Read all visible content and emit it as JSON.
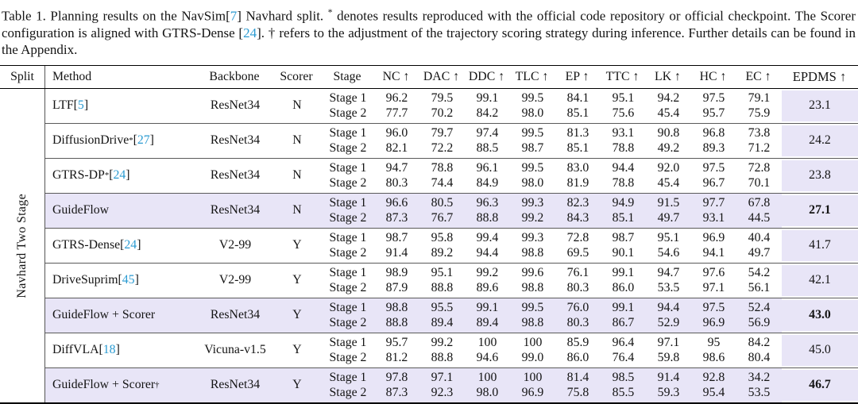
{
  "caption": {
    "segments": [
      {
        "text": "Table 1.  Planning results on the NavSim[",
        "cite": false,
        "sup": false
      },
      {
        "text": "7",
        "cite": true,
        "sup": false
      },
      {
        "text": "] Navhard split.  ",
        "cite": false,
        "sup": false
      },
      {
        "text": "*",
        "cite": false,
        "sup": true
      },
      {
        "text": " denotes results reproduced with the official code repository or official checkpoint. The Scorer configuration is aligned with GTRS-Dense [",
        "cite": false,
        "sup": false
      },
      {
        "text": "24",
        "cite": true,
        "sup": false
      },
      {
        "text": "]. † refers to the adjustment of the trajectory scoring strategy during inference. Further details can be found in the Appendix.",
        "cite": false,
        "sup": false
      }
    ]
  },
  "table": {
    "header": {
      "split": "Split",
      "method": "Method",
      "backbone": "Backbone",
      "scorer": "Scorer",
      "stage": "Stage",
      "metrics": [
        "NC ↑",
        "DAC ↑",
        "DDC ↑",
        "TLC ↑",
        "EP ↑",
        "TTC ↑",
        "LK ↑",
        "HC ↑",
        "EC ↑"
      ],
      "epdms": "EPDMS ↑"
    },
    "split_label": "Navhard Two Stage",
    "stage_labels": [
      "Stage 1",
      "Stage 2"
    ],
    "rows": [
      {
        "method": {
          "label": "LTF",
          "sup": "",
          "cite": "5"
        },
        "backbone": "ResNet34",
        "scorer": "N",
        "stage1": [
          "96.2",
          "79.5",
          "99.1",
          "99.5",
          "84.1",
          "95.1",
          "94.2",
          "97.5",
          "79.1"
        ],
        "stage2": [
          "77.7",
          "70.2",
          "84.2",
          "98.0",
          "85.1",
          "75.6",
          "45.4",
          "95.7",
          "75.9"
        ],
        "epdms": "23.1",
        "highlight": false,
        "epdms_bold": false
      },
      {
        "method": {
          "label": "DiffusionDrive",
          "sup": "*",
          "cite": "27"
        },
        "backbone": "ResNet34",
        "scorer": "N",
        "stage1": [
          "96.0",
          "79.7",
          "97.4",
          "99.5",
          "81.3",
          "93.1",
          "90.8",
          "96.8",
          "73.8"
        ],
        "stage2": [
          "82.1",
          "72.2",
          "88.5",
          "98.7",
          "85.1",
          "78.8",
          "49.2",
          "89.3",
          "71.2"
        ],
        "epdms": "24.2",
        "highlight": false,
        "epdms_bold": false
      },
      {
        "method": {
          "label": "GTRS-DP",
          "sup": "*",
          "cite": "24"
        },
        "backbone": "ResNet34",
        "scorer": "N",
        "stage1": [
          "94.7",
          "78.8",
          "96.1",
          "99.5",
          "83.0",
          "94.4",
          "92.0",
          "97.5",
          "72.8"
        ],
        "stage2": [
          "80.3",
          "74.4",
          "84.9",
          "98.0",
          "81.9",
          "78.8",
          "45.4",
          "96.7",
          "70.1"
        ],
        "epdms": "23.8",
        "highlight": false,
        "epdms_bold": false
      },
      {
        "method": {
          "label": "GuideFlow",
          "sup": "",
          "cite": ""
        },
        "backbone": "ResNet34",
        "scorer": "N",
        "stage1": [
          "96.6",
          "80.5",
          "96.3",
          "99.3",
          "82.3",
          "94.9",
          "91.5",
          "97.7",
          "67.8"
        ],
        "stage2": [
          "87.3",
          "76.7",
          "88.8",
          "99.2",
          "84.3",
          "85.1",
          "49.7",
          "93.1",
          "44.5"
        ],
        "epdms": "27.1",
        "highlight": true,
        "epdms_bold": true
      },
      {
        "method": {
          "label": "GTRS-Dense",
          "sup": "",
          "cite": "24"
        },
        "backbone": "V2-99",
        "scorer": "Y",
        "stage1": [
          "98.7",
          "95.8",
          "99.4",
          "99.3",
          "72.8",
          "98.7",
          "95.1",
          "96.9",
          "40.4"
        ],
        "stage2": [
          "91.4",
          "89.2",
          "94.4",
          "98.8",
          "69.5",
          "90.1",
          "54.6",
          "94.1",
          "49.7"
        ],
        "epdms": "41.7",
        "highlight": false,
        "epdms_bold": false
      },
      {
        "method": {
          "label": "DriveSuprim",
          "sup": "",
          "cite": "45"
        },
        "backbone": "V2-99",
        "scorer": "Y",
        "stage1": [
          "98.9",
          "95.1",
          "99.2",
          "99.6",
          "76.1",
          "99.1",
          "94.7",
          "97.6",
          "54.2"
        ],
        "stage2": [
          "87.9",
          "88.8",
          "89.6",
          "98.8",
          "80.3",
          "86.0",
          "53.5",
          "97.1",
          "56.1"
        ],
        "epdms": "42.1",
        "highlight": false,
        "epdms_bold": false
      },
      {
        "method": {
          "label": "GuideFlow + Scorer",
          "sup": "",
          "cite": ""
        },
        "backbone": "ResNet34",
        "scorer": "Y",
        "stage1": [
          "98.8",
          "95.5",
          "99.1",
          "99.5",
          "76.0",
          "99.1",
          "94.4",
          "97.5",
          "52.4"
        ],
        "stage2": [
          "88.8",
          "89.4",
          "89.4",
          "98.8",
          "80.3",
          "86.7",
          "52.9",
          "96.9",
          "56.9"
        ],
        "epdms": "43.0",
        "highlight": true,
        "epdms_bold": true
      },
      {
        "method": {
          "label": "DiffVLA",
          "sup": "",
          "cite": "18"
        },
        "backbone": "Vicuna-v1.5",
        "scorer": "Y",
        "stage1": [
          "95.7",
          "99.2",
          "100",
          "100",
          "85.9",
          "96.4",
          "97.1",
          "95",
          "84.2"
        ],
        "stage2": [
          "81.2",
          "88.8",
          "94.6",
          "99.0",
          "86.0",
          "76.4",
          "59.8",
          "98.6",
          "80.4"
        ],
        "epdms": "45.0",
        "highlight": false,
        "epdms_bold": false
      },
      {
        "method": {
          "label": "GuideFlow + Scorer",
          "sup": "†",
          "cite": ""
        },
        "backbone": "ResNet34",
        "scorer": "Y",
        "stage1": [
          "97.8",
          "97.1",
          "100",
          "100",
          "81.4",
          "98.5",
          "91.4",
          "92.8",
          "34.2"
        ],
        "stage2": [
          "87.3",
          "92.3",
          "98.0",
          "96.9",
          "75.8",
          "85.5",
          "59.3",
          "95.4",
          "53.5"
        ],
        "epdms": "46.7",
        "highlight": true,
        "epdms_bold": true
      }
    ]
  },
  "colors": {
    "highlight": "#E8E5F7",
    "cite_link": "#2B9BD2"
  }
}
